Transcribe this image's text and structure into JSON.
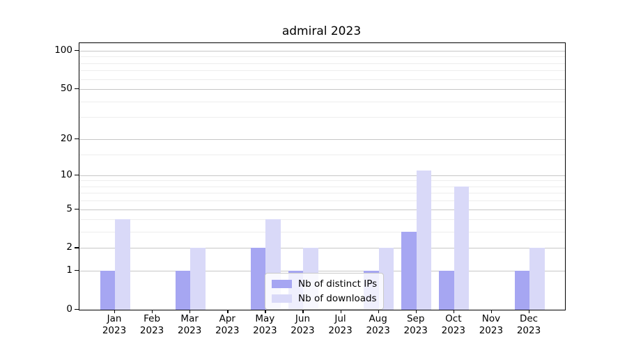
{
  "title": "admiral 2023",
  "chart_data": {
    "type": "bar",
    "title": "admiral 2023",
    "categories": [
      "Jan",
      "Feb",
      "Mar",
      "Apr",
      "May",
      "Jun",
      "Jul",
      "Aug",
      "Sep",
      "Oct",
      "Nov",
      "Dec"
    ],
    "year_label": "2023",
    "series": [
      {
        "name": "Nb of distinct IPs",
        "color": "#a6a6f2",
        "values": [
          1,
          0,
          1,
          0,
          2,
          1,
          0,
          1,
          3,
          1,
          0,
          1
        ]
      },
      {
        "name": "Nb of downloads",
        "color": "#d9d9f8",
        "values": [
          4,
          0,
          2,
          0,
          4,
          2,
          0,
          2,
          11,
          8,
          0,
          2
        ]
      }
    ],
    "xlabel": "",
    "ylabel": "",
    "yscale": "log1p",
    "ylim": [
      0,
      117
    ],
    "y_major_ticks": [
      0,
      1,
      2,
      5,
      10,
      20,
      50,
      100
    ],
    "y_minor_gridlines": [
      3,
      4,
      6,
      7,
      8,
      9,
      15,
      30,
      40,
      60,
      70,
      80,
      90
    ],
    "grid": "horizontal",
    "legend_position": "inside-lower-center"
  },
  "legend": {
    "entry_ips": "Nb of distinct IPs",
    "entry_downloads": "Nb of downloads"
  }
}
